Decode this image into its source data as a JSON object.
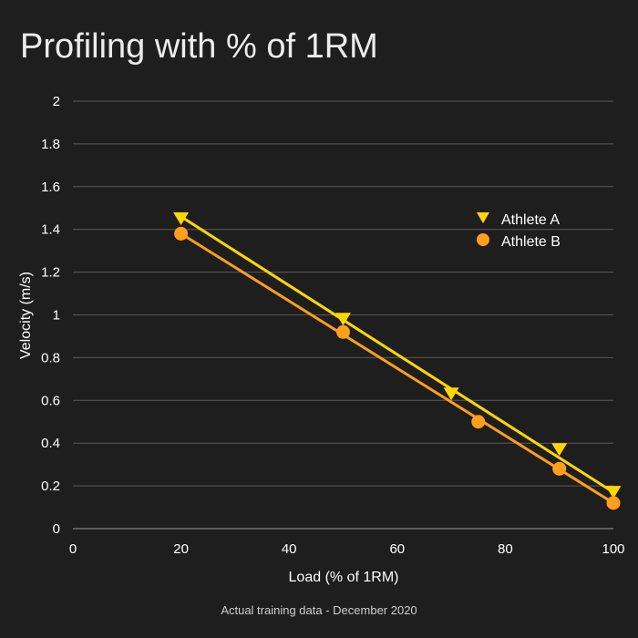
{
  "colors": {
    "background": "#1e1e1f",
    "athlete_a": "#ffd700",
    "athlete_b": "#ff9f1a",
    "grid": "#5a5a5a"
  },
  "chart_data": {
    "type": "scatter",
    "title": "Profiling with % of 1RM",
    "xlabel": "Load (% of 1RM)",
    "ylabel": "Velocity (m/s)",
    "xlim": [
      0,
      100
    ],
    "ylim": [
      0,
      2
    ],
    "xticks": [
      0,
      20,
      40,
      60,
      80,
      100
    ],
    "yticks": [
      0,
      0.2,
      0.4,
      0.6,
      0.8,
      1,
      1.2,
      1.4,
      1.6,
      1.8,
      2
    ],
    "grid": "horizontal",
    "legend_position": "top-right",
    "footnote": "Actual training data - December 2020",
    "series": [
      {
        "name": "Athlete A",
        "marker": "triangle-down",
        "color": "#ffd700",
        "points": [
          {
            "x": 20,
            "y": 1.45
          },
          {
            "x": 50,
            "y": 0.98
          },
          {
            "x": 70,
            "y": 0.63
          },
          {
            "x": 90,
            "y": 0.37
          },
          {
            "x": 100,
            "y": 0.17
          }
        ],
        "trendline": {
          "x": [
            20,
            100
          ],
          "y": [
            1.46,
            0.17
          ]
        }
      },
      {
        "name": "Athlete B",
        "marker": "circle",
        "color": "#ff9f1a",
        "points": [
          {
            "x": 20,
            "y": 1.38
          },
          {
            "x": 50,
            "y": 0.92
          },
          {
            "x": 75,
            "y": 0.5
          },
          {
            "x": 90,
            "y": 0.28
          },
          {
            "x": 100,
            "y": 0.12
          }
        ],
        "trendline": {
          "x": [
            20,
            100
          ],
          "y": [
            1.38,
            0.12
          ]
        }
      }
    ]
  }
}
